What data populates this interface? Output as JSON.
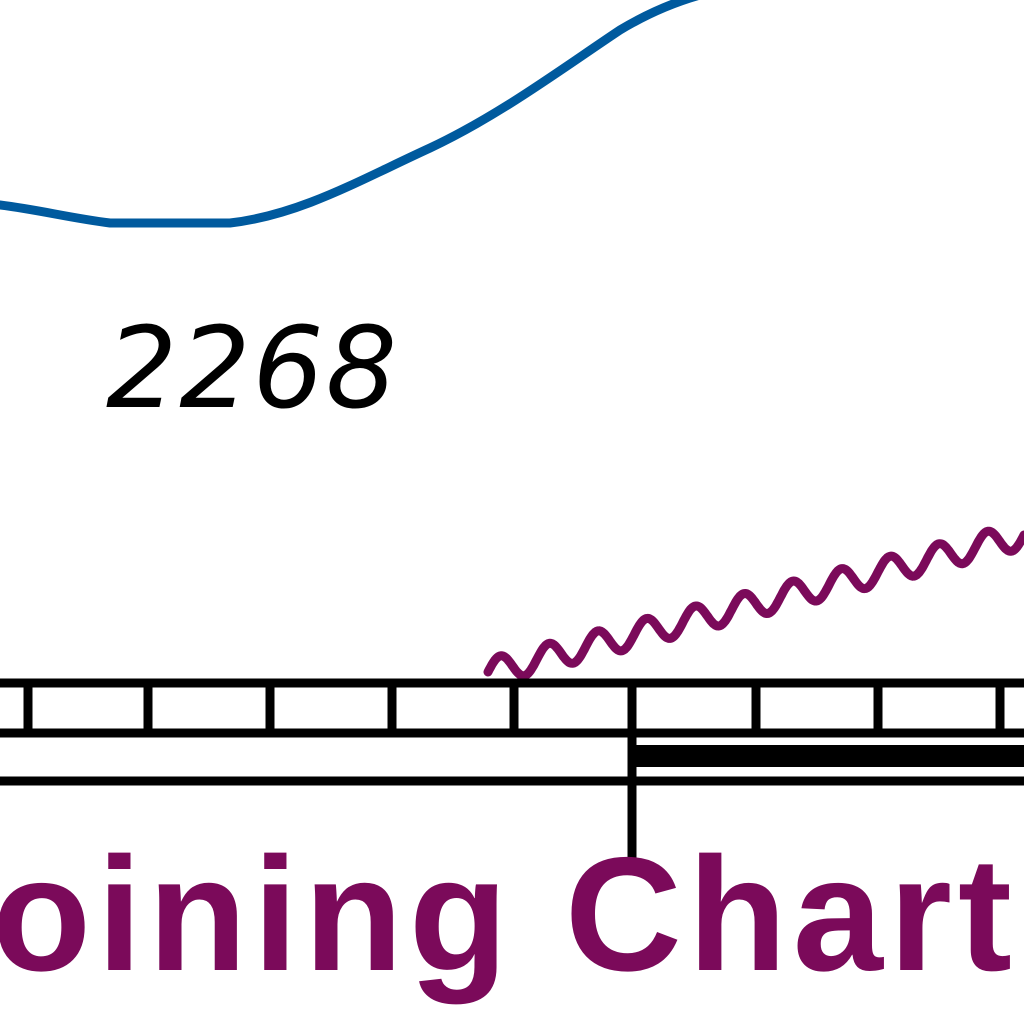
{
  "map": {
    "depth_label": "2268",
    "caption": "oining Chart",
    "colors": {
      "contour_line": "#005a9e",
      "boundary_line": "#7b0a5a",
      "caption_text": "#7b0a5a",
      "border_ink": "#000000",
      "depth_text": "#000000",
      "background": "#ffffff"
    }
  }
}
